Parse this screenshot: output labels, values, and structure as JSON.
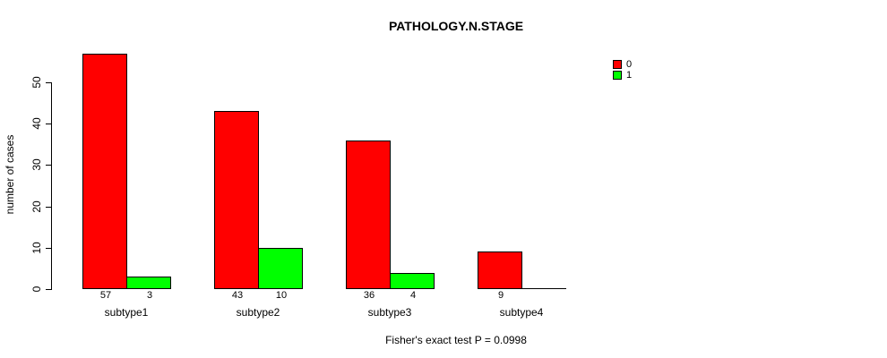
{
  "chart_data": {
    "type": "bar",
    "title": "PATHOLOGY.N.STAGE",
    "ylabel": "number of cases",
    "xlabel": "",
    "caption": "Fisher's exact test P = 0.0998",
    "categories": [
      "subtype1",
      "subtype2",
      "subtype3",
      "subtype4"
    ],
    "series": [
      {
        "name": "0",
        "color": "#FF0000",
        "values": [
          57,
          43,
          36,
          9
        ]
      },
      {
        "name": "1",
        "color": "#00FF00",
        "values": [
          3,
          10,
          4,
          0
        ]
      }
    ],
    "bar_value_labels": [
      [
        "57",
        "3"
      ],
      [
        "43",
        "10"
      ],
      [
        "36",
        "4"
      ],
      [
        "9",
        ""
      ]
    ],
    "yticks": [
      0,
      10,
      20,
      30,
      40,
      50
    ],
    "ylim": [
      0,
      57
    ],
    "grid": false,
    "legend_position": "top-right",
    "bar_border_color": "#000000",
    "axis_color": "#000000",
    "background_color": "#FFFFFF"
  }
}
